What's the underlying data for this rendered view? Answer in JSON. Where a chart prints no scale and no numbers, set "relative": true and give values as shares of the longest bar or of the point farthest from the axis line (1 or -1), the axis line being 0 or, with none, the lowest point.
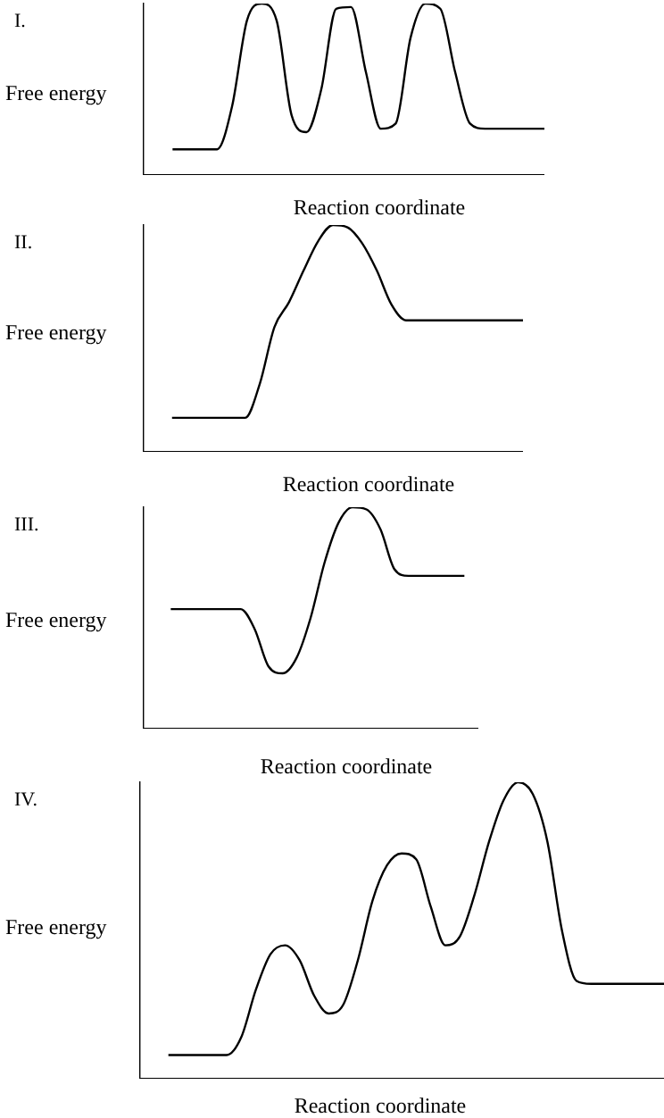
{
  "chart_data": [
    {
      "type": "line",
      "title": "I.",
      "xlabel": "Reaction coordinate",
      "ylabel": "Free energy",
      "relative": true,
      "marker": "none",
      "legend": false,
      "grid": false,
      "categories": [
        null,
        null,
        null,
        null,
        null,
        null,
        null,
        null,
        null,
        null,
        null,
        null,
        null,
        null,
        null,
        null,
        null,
        null,
        null,
        null,
        null,
        null,
        null,
        null,
        null,
        null,
        null,
        null
      ],
      "series": [
        {
          "color": "#000000",
          "values": [
            null,
            null,
            0.15,
            0.15,
            0.15,
            0.15,
            0.4,
            0.9,
            1,
            0.9,
            0.35,
            0.25,
            0.5,
            0.97,
            0.98,
            0.6,
            0.27,
            0.3,
            0.8,
            1,
            0.97,
            0.6,
            0.3,
            0.27,
            0.27,
            0.27,
            0.27,
            0.27
          ]
        }
      ]
    },
    {
      "type": "line",
      "title": "II.",
      "xlabel": "Reaction coordinate",
      "ylabel": "Free energy",
      "relative": true,
      "marker": "none",
      "legend": false,
      "grid": false,
      "categories": [
        null,
        null,
        null,
        null,
        null,
        null,
        null,
        null,
        null,
        null,
        null,
        null,
        null,
        null,
        null,
        null,
        null,
        null,
        null,
        null,
        null,
        null,
        null,
        null,
        null,
        null,
        null
      ],
      "series": [
        {
          "color": "#000000",
          "values": [
            null,
            null,
            0.15,
            0.15,
            0.15,
            0.15,
            0.15,
            0.15,
            0.3,
            0.55,
            0.66,
            0.8,
            0.93,
            1,
            0.99,
            0.92,
            0.8,
            0.65,
            0.58,
            0.58,
            0.58,
            0.58,
            0.58,
            0.58,
            0.58,
            0.58,
            0.58
          ]
        }
      ]
    },
    {
      "type": "line",
      "title": "III.",
      "xlabel": "Reaction coordinate",
      "ylabel": "Free energy",
      "relative": true,
      "marker": "none",
      "legend": false,
      "grid": false,
      "categories": [
        null,
        null,
        null,
        null,
        null,
        null,
        null,
        null,
        null,
        null,
        null,
        null,
        null,
        null,
        null,
        null,
        null,
        null,
        null,
        null,
        null,
        null,
        null,
        null,
        null
      ],
      "series": [
        {
          "color": "#000000",
          "values": [
            null,
            null,
            0.54,
            0.54,
            0.54,
            0.54,
            0.54,
            0.54,
            0.45,
            0.28,
            0.25,
            0.32,
            0.5,
            0.75,
            0.93,
            1,
            0.99,
            0.9,
            0.72,
            0.69,
            0.69,
            0.69,
            0.69,
            0.69,
            null
          ]
        }
      ]
    },
    {
      "type": "line",
      "title": "IV.",
      "xlabel": "Reaction coordinate",
      "ylabel": "Free energy",
      "relative": true,
      "marker": "none",
      "legend": false,
      "grid": false,
      "categories": [
        null,
        null,
        null,
        null,
        null,
        null,
        null,
        null,
        null,
        null,
        null,
        null,
        null,
        null,
        null,
        null,
        null,
        null,
        null,
        null,
        null,
        null,
        null,
        null,
        null,
        null,
        null,
        null,
        null,
        null,
        null,
        null,
        null,
        null,
        null,
        null,
        null
      ],
      "series": [
        {
          "color": "#000000",
          "values": [
            null,
            null,
            0.08,
            0.08,
            0.08,
            0.08,
            0.08,
            0.14,
            0.3,
            0.42,
            0.45,
            0.4,
            0.28,
            0.22,
            0.25,
            0.4,
            0.6,
            0.72,
            0.76,
            0.74,
            0.58,
            0.45,
            0.48,
            0.62,
            0.8,
            0.94,
            1,
            0.96,
            0.8,
            0.5,
            0.33,
            0.32,
            0.32,
            0.32,
            0.32,
            0.32,
            0.32
          ]
        }
      ]
    }
  ]
}
